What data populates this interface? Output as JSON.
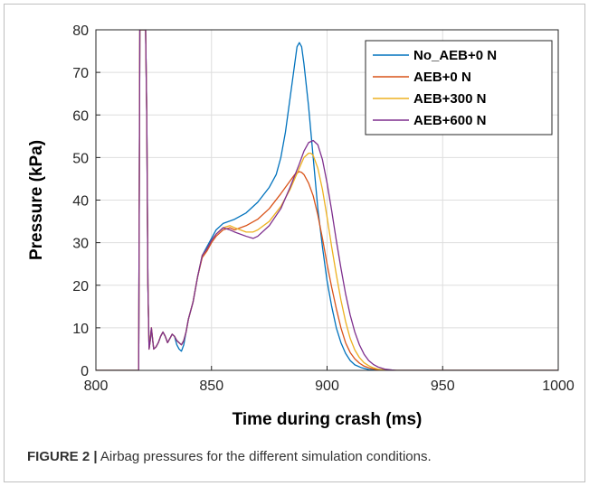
{
  "figure": {
    "label": "FIGURE 2 |",
    "caption": " Airbag pressures for the different simulation conditions."
  },
  "chart_data": {
    "type": "line",
    "title": "",
    "xlabel": "Time during crash (ms)",
    "ylabel": "Pressure (kPa)",
    "xlim": [
      800,
      1000
    ],
    "ylim": [
      0,
      80
    ],
    "xticks": [
      800,
      850,
      900,
      950,
      1000
    ],
    "yticks": [
      0,
      10,
      20,
      30,
      40,
      50,
      60,
      70,
      80
    ],
    "grid": true,
    "legend_position": "top-right",
    "series": [
      {
        "name": "No_AEB+0 N",
        "color": "#0072BD",
        "x": [
          800,
          818.5,
          819,
          820,
          821.5,
          822,
          822.5,
          823,
          823.5,
          824,
          825,
          826,
          827,
          828,
          829,
          830,
          831,
          832,
          833,
          834,
          835,
          836,
          837,
          838,
          839,
          840,
          842,
          844,
          846,
          848,
          850,
          852,
          855,
          860,
          865,
          870,
          875,
          878,
          880,
          882,
          884,
          886,
          887,
          888,
          889,
          890,
          892,
          894,
          896,
          898,
          900,
          902,
          904,
          906,
          908,
          910,
          912,
          915,
          918,
          920,
          925,
          930,
          1000
        ],
        "y": [
          0,
          0,
          80,
          80,
          80,
          60,
          20,
          5,
          7,
          9.5,
          5,
          5.5,
          6.5,
          8,
          9,
          8,
          6.5,
          7.5,
          8.5,
          8,
          6,
          5,
          4.5,
          6,
          9,
          12,
          16,
          22,
          27,
          29,
          31,
          33,
          34.5,
          35.5,
          37,
          39.5,
          43,
          46,
          50,
          56,
          64,
          72,
          76,
          77,
          76,
          72,
          62,
          50,
          38,
          29,
          21,
          15,
          10,
          6.5,
          4,
          2.3,
          1.3,
          0.6,
          0.2,
          0.1,
          0,
          0,
          0
        ]
      },
      {
        "name": "AEB+0 N",
        "color": "#D95319",
        "x": [
          800,
          818.5,
          819,
          820,
          821.5,
          822,
          822.5,
          823,
          823.5,
          824,
          825,
          826,
          827,
          828,
          829,
          830,
          831,
          832,
          833,
          834,
          835,
          836,
          837,
          838,
          839,
          840,
          842,
          844,
          846,
          848,
          850,
          852,
          855,
          858,
          860,
          865,
          870,
          875,
          880,
          884,
          886,
          888,
          889,
          890,
          892,
          894,
          896,
          898,
          900,
          902,
          904,
          906,
          908,
          910,
          912,
          914,
          916,
          918,
          920,
          922,
          925,
          930,
          1000
        ],
        "y": [
          0,
          0,
          80,
          80,
          80,
          60,
          20,
          5,
          7,
          10,
          5,
          5.5,
          6.5,
          8,
          9,
          8,
          6.5,
          7.5,
          8.5,
          8,
          7,
          6.5,
          6,
          7,
          9,
          12,
          16,
          22,
          26.5,
          28,
          30,
          31.5,
          33,
          33.5,
          33,
          34,
          35.5,
          38,
          41.5,
          44.5,
          46,
          46.7,
          46.5,
          46,
          44,
          41,
          36.5,
          31,
          25,
          19.5,
          14.5,
          10,
          6.5,
          4.2,
          2.7,
          1.7,
          1,
          0.6,
          0.35,
          0.2,
          0.05,
          0,
          0
        ]
      },
      {
        "name": "AEB+300 N",
        "color": "#EDB120",
        "x": [
          800,
          818.5,
          819,
          820,
          821.5,
          822,
          822.5,
          823,
          823.5,
          824,
          825,
          826,
          827,
          828,
          829,
          830,
          831,
          832,
          833,
          834,
          835,
          836,
          837,
          838,
          839,
          840,
          842,
          844,
          846,
          848,
          850,
          852,
          855,
          858,
          860,
          865,
          868,
          870,
          875,
          880,
          884,
          888,
          890,
          892,
          893,
          894,
          896,
          898,
          900,
          902,
          904,
          906,
          908,
          910,
          912,
          914,
          916,
          918,
          920,
          922,
          925,
          930,
          1000
        ],
        "y": [
          0,
          0,
          80,
          80,
          80,
          60,
          20,
          5,
          7,
          10,
          5,
          5.5,
          6.5,
          8,
          9,
          8,
          6.5,
          7.5,
          8.5,
          8,
          7,
          6.5,
          6,
          7,
          9,
          12,
          16,
          22,
          27,
          28.5,
          30.5,
          32,
          33.5,
          34,
          33.5,
          32.5,
          32.5,
          33,
          35,
          38.5,
          42.5,
          47.5,
          50,
          51,
          51,
          50.5,
          47.5,
          42.5,
          36,
          29,
          22.5,
          16.5,
          11.5,
          7.5,
          4.8,
          3,
          1.8,
          1.1,
          0.6,
          0.3,
          0.1,
          0,
          0
        ]
      },
      {
        "name": "AEB+600 N",
        "color": "#7E2F8E",
        "x": [
          800,
          818.5,
          819,
          820,
          821.5,
          822,
          822.5,
          823,
          823.5,
          824,
          825,
          826,
          827,
          828,
          829,
          830,
          831,
          832,
          833,
          834,
          835,
          836,
          837,
          838,
          839,
          840,
          842,
          844,
          846,
          848,
          850,
          852,
          855,
          858,
          860,
          865,
          868,
          870,
          875,
          880,
          884,
          888,
          890,
          892,
          894,
          896,
          898,
          900,
          902,
          904,
          906,
          908,
          910,
          912,
          914,
          916,
          918,
          920,
          922,
          925,
          928,
          930,
          1000
        ],
        "y": [
          0,
          0,
          80,
          80,
          80,
          60,
          20,
          5,
          7,
          10,
          5,
          5.5,
          6.5,
          8,
          9,
          8,
          6.5,
          7.5,
          8.5,
          8,
          7,
          6.5,
          6,
          7,
          9,
          12,
          16,
          22,
          27,
          28.5,
          30.5,
          32,
          33.5,
          33,
          32.5,
          31.5,
          31,
          31.5,
          34,
          38,
          43,
          48.5,
          51.5,
          53.5,
          54,
          53,
          49.5,
          44,
          37.5,
          30.5,
          24,
          18,
          13,
          9,
          6,
          3.8,
          2.3,
          1.4,
          0.8,
          0.3,
          0.1,
          0,
          0
        ]
      }
    ]
  }
}
